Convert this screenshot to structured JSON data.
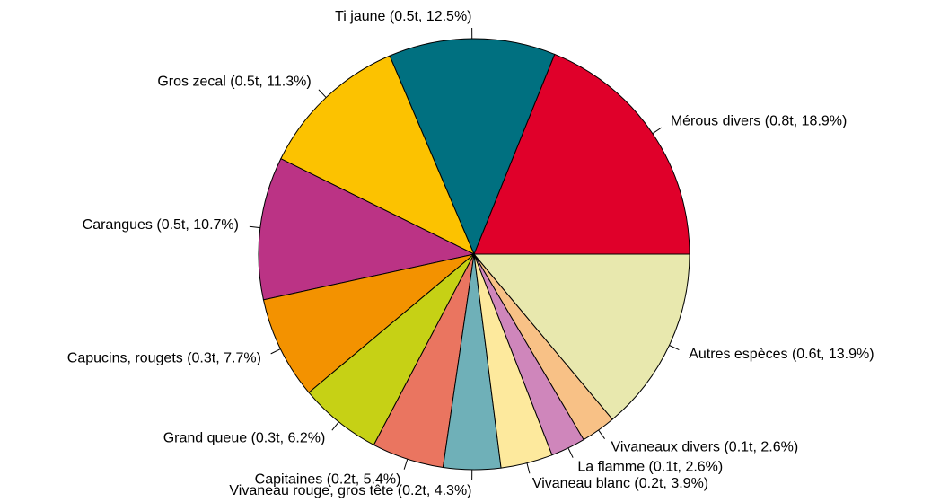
{
  "chart_data": {
    "type": "pie",
    "value_labels": [
      "Mérous divers (0.8t, 18.9%)",
      "Ti jaune (0.5t, 12.5%)",
      "Gros zecal (0.5t, 11.3%)",
      "Carangues (0.5t, 10.7%)",
      "Capucins, rougets (0.3t, 7.7%)",
      "Grand queue (0.3t, 6.2%)",
      "Capitaines (0.2t, 5.4%)",
      "Vivaneau rouge, gros tête (0.2t, 4.3%)",
      "Vivaneau blanc (0.2t, 3.9%)",
      "La flamme (0.1t, 2.6%)",
      "Vivaneaux divers (0.1t, 2.6%)",
      "Autres espèces (0.6t, 13.9%)"
    ],
    "values": [
      18.9,
      12.5,
      11.3,
      10.7,
      7.7,
      6.2,
      5.4,
      4.3,
      3.9,
      2.6,
      2.6,
      13.9
    ],
    "colors": [
      "#e0002a",
      "#007080",
      "#fcc200",
      "#bb3385",
      "#f39200",
      "#c6d115",
      "#ea7560",
      "#6fb0b8",
      "#fde99d",
      "#cf86bb",
      "#f8c186",
      "#e8e8ae"
    ]
  }
}
